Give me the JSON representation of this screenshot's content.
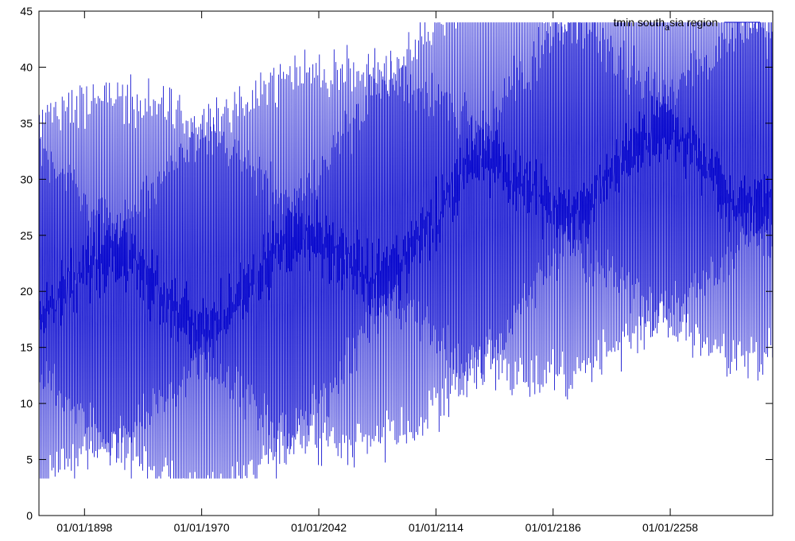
{
  "chart_data": {
    "type": "line",
    "legend": {
      "label_main": "tmin south",
      "label_sub": "a",
      "label_tail": "sia region",
      "position": "top-right"
    },
    "color": "#0000cc",
    "ylim": [
      0,
      45
    ],
    "yticks": [
      0,
      5,
      10,
      15,
      20,
      25,
      30,
      35,
      40,
      45
    ],
    "xticks": [
      "01/01/1898",
      "01/01/1970",
      "01/01/2042",
      "01/01/2114",
      "01/01/2186",
      "01/01/2258"
    ],
    "x_range_years": [
      1870,
      2321
    ],
    "grid": false,
    "series": [
      {
        "values_description_free": true,
        "envelope": {
          "x_years": [
            1870,
            1898,
            1934,
            1970,
            2006,
            2042,
            2078,
            2114,
            2150,
            2186,
            2222,
            2258,
            2294,
            2321
          ],
          "annual_max": [
            31.5,
            31.5,
            31.5,
            32.0,
            32.5,
            34.0,
            36.5,
            39.0,
            41.0,
            42.0,
            42.5,
            42.5,
            42.0,
            42.0
          ],
          "annual_min": [
            9.0,
            9.0,
            8.5,
            8.0,
            8.5,
            10.5,
            12.5,
            14.5,
            16.5,
            18.0,
            19.5,
            20.0,
            19.5,
            20.0
          ],
          "extreme_high": 44.0,
          "extreme_low": 3.3
        }
      }
    ]
  }
}
